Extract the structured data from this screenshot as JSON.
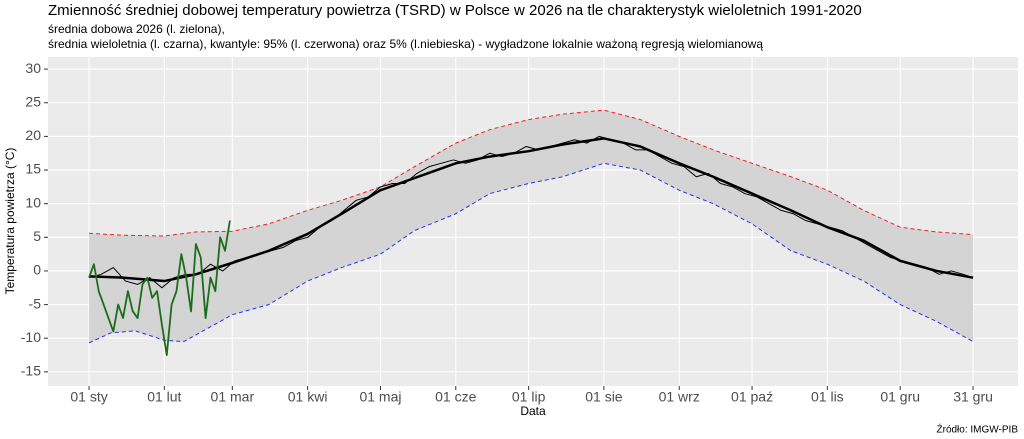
{
  "chart_data": {
    "type": "line",
    "title": "Zmienność średniej dobowej temperatury powietrza (TSRD) w Polsce w 2026 na tle charakterystyk wieloletnich 1991-2020",
    "subtitle": [
      "średnia dobowa 2026 (l. zielona),",
      "średnia wieloletnia (l. czarna), kwantyle: 95% (l. czerwona) oraz 5% (l.niebieska) - wygładzone lokalnie ważoną regresją wielomianową"
    ],
    "x_label": "Data",
    "y_label": "Temperatura powietrza (°C)",
    "source": "Źródło: IMGW-PIB",
    "xlim": [
      -15.9,
      383.5
    ],
    "ylim": [
      -17.1,
      31.8
    ],
    "xticks": [
      {
        "value": 1,
        "label": "01 sty"
      },
      {
        "value": 32,
        "label": "01 lut"
      },
      {
        "value": 60,
        "label": "01 mar"
      },
      {
        "value": 91,
        "label": "01 kwi"
      },
      {
        "value": 121,
        "label": "01 maj"
      },
      {
        "value": 152,
        "label": "01 cze"
      },
      {
        "value": 182,
        "label": "01 lip"
      },
      {
        "value": 213,
        "label": "01 sie"
      },
      {
        "value": 244,
        "label": "01 wrz"
      },
      {
        "value": 274,
        "label": "01 paź"
      },
      {
        "value": 305,
        "label": "01 lis"
      },
      {
        "value": 335,
        "label": "01 gru"
      },
      {
        "value": 365,
        "label": "31 gru"
      }
    ],
    "yticks": [
      -15,
      -10,
      -5,
      0,
      5,
      10,
      15,
      20,
      25,
      30
    ],
    "grid": true,
    "band_color": "#d4d4d4",
    "series": [
      {
        "color": "#ee2222",
        "dash": true,
        "width": 1,
        "x": [
          1,
          15,
          32,
          45,
          60,
          75,
          91,
          105,
          121,
          135,
          152,
          166,
          182,
          196,
          213,
          228,
          244,
          258,
          274,
          290,
          305,
          320,
          335,
          350,
          365
        ],
        "values": [
          5.6,
          5.3,
          5.2,
          5.8,
          5.9,
          7,
          9,
          10.5,
          12.5,
          15.5,
          19,
          21,
          22.5,
          23.3,
          23.9,
          22.5,
          20,
          18,
          16,
          14,
          12,
          9,
          6.5,
          5.8,
          5.4
        ]
      },
      {
        "color": "#2233ee",
        "dash": true,
        "width": 1,
        "x": [
          1,
          10,
          20,
          32,
          40,
          50,
          60,
          75,
          91,
          105,
          121,
          135,
          152,
          166,
          182,
          196,
          213,
          228,
          244,
          258,
          274,
          290,
          305,
          320,
          335,
          350,
          365
        ],
        "values": [
          -10.7,
          -9.2,
          -8.9,
          -10.3,
          -10.5,
          -8.5,
          -6.5,
          -5,
          -1.5,
          0.5,
          2.5,
          6,
          8.5,
          11.5,
          13,
          14,
          16,
          15,
          12,
          10,
          7,
          3,
          1,
          -1.5,
          -5,
          -7.5,
          -10.5
        ]
      },
      {
        "color": "#000000",
        "dash": false,
        "width": 1,
        "x": [
          1,
          6,
          11,
          16,
          21,
          26,
          31,
          36,
          41,
          46,
          51,
          56,
          61,
          66,
          71,
          76,
          81,
          86,
          91,
          96,
          101,
          106,
          111,
          116,
          121,
          126,
          131,
          136,
          141,
          146,
          151,
          156,
          161,
          166,
          171,
          176,
          181,
          186,
          191,
          196,
          201,
          206,
          211,
          216,
          221,
          226,
          231,
          236,
          241,
          246,
          251,
          256,
          261,
          266,
          271,
          276,
          281,
          286,
          291,
          296,
          301,
          306,
          311,
          316,
          321,
          326,
          331,
          336,
          341,
          346,
          351,
          356,
          361,
          365
        ],
        "values": [
          -1,
          -0.5,
          0.5,
          -1.5,
          -2,
          -1,
          -2.5,
          -1,
          -0.5,
          -0.5,
          1,
          0,
          1.5,
          2,
          2.5,
          3,
          3.5,
          4.5,
          5,
          6.5,
          7.5,
          9,
          10.5,
          11,
          12.5,
          13,
          13,
          14.5,
          15.5,
          16,
          16.5,
          16,
          16.5,
          17.5,
          17,
          17.5,
          18.5,
          18,
          18.5,
          19,
          19.5,
          19,
          20,
          19.5,
          19,
          18,
          18,
          17,
          16,
          15.5,
          14,
          14.5,
          13,
          12.5,
          11.5,
          11,
          10,
          9,
          8.5,
          7.5,
          7,
          6.5,
          6,
          5,
          4,
          3,
          2,
          1.5,
          1,
          0.5,
          -0.5,
          0,
          -0.5,
          -1
        ]
      },
      {
        "color": "#000000",
        "dash": false,
        "width": 2.5,
        "x": [
          1,
          15,
          32,
          45,
          60,
          75,
          91,
          105,
          121,
          135,
          152,
          166,
          182,
          196,
          213,
          228,
          244,
          258,
          274,
          290,
          305,
          320,
          335,
          350,
          365
        ],
        "values": [
          -0.8,
          -1,
          -1.5,
          -0.5,
          1.2,
          3,
          5.5,
          8.5,
          12,
          13.8,
          16,
          17,
          17.8,
          18.8,
          19.7,
          18.5,
          16,
          14,
          11.5,
          9,
          6.5,
          4.5,
          1.5,
          0,
          -1
        ]
      },
      {
        "color": "#1a6e1a",
        "dash": false,
        "width": 1.8,
        "x": [
          1,
          3,
          5,
          7,
          9,
          11,
          13,
          15,
          17,
          19,
          21,
          23,
          25,
          27,
          29,
          31,
          33,
          35,
          37,
          39,
          41,
          43,
          45,
          47,
          49,
          51,
          53,
          55,
          57,
          59
        ],
        "values": [
          -1,
          1,
          -3,
          -5,
          -7,
          -9,
          -5,
          -7,
          -3,
          -6,
          -7,
          -2,
          -1,
          -4,
          -3,
          -8,
          -12.5,
          -5,
          -3,
          2.5,
          -1,
          -6,
          4,
          2,
          -7,
          -1,
          -3,
          5,
          3,
          7.5
        ]
      }
    ]
  }
}
